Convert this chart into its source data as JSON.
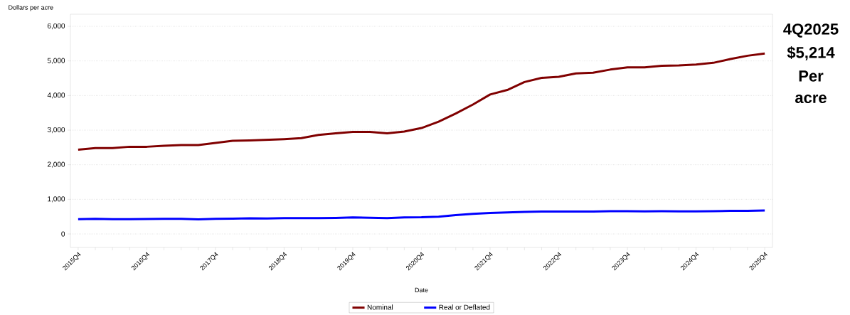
{
  "chart_data": {
    "type": "line",
    "ylabel": "Dollars per acre",
    "xlabel": "Date",
    "categories": [
      "2015Q4",
      null,
      null,
      null,
      "2016Q4",
      null,
      null,
      null,
      "2017Q4",
      null,
      null,
      null,
      "2018Q4",
      null,
      null,
      null,
      "2019Q4",
      null,
      null,
      null,
      "2020Q4",
      null,
      null,
      null,
      "2021Q4",
      null,
      null,
      null,
      "2022Q4",
      null,
      null,
      null,
      "2023Q4",
      null,
      null,
      null,
      "2024Q4",
      null,
      null,
      null,
      "2025Q4"
    ],
    "series": [
      {
        "name": "Nominal",
        "color": "#800000",
        "values": [
          2435,
          2480,
          2480,
          2520,
          2520,
          2550,
          2570,
          2570,
          2630,
          2690,
          2700,
          2720,
          2740,
          2770,
          2860,
          2910,
          2950,
          2950,
          2910,
          2960,
          3060,
          3245,
          3480,
          3740,
          4030,
          4160,
          4390,
          4510,
          4540,
          4640,
          4660,
          4750,
          4815,
          4815,
          4860,
          4870,
          4895,
          4945,
          5055,
          5150,
          5214
        ]
      },
      {
        "name": "Real or Deflated",
        "color": "#0000ff",
        "values": [
          425,
          435,
          425,
          425,
          430,
          435,
          435,
          420,
          435,
          440,
          450,
          445,
          455,
          455,
          455,
          465,
          480,
          470,
          456,
          480,
          483,
          500,
          545,
          580,
          605,
          620,
          635,
          645,
          645,
          645,
          645,
          660,
          660,
          655,
          660,
          655,
          652,
          660,
          668,
          670,
          676
        ]
      }
    ],
    "ylim": [
      -390,
      6350
    ],
    "yticks": [
      {
        "value": 0,
        "label": "0"
      },
      {
        "value": 1000,
        "label": "1,000"
      },
      {
        "value": 2000,
        "label": "2,000"
      },
      {
        "value": 3000,
        "label": "3,000"
      },
      {
        "value": 4000,
        "label": "4,000"
      },
      {
        "value": 5000,
        "label": "5,000"
      },
      {
        "value": 6000,
        "label": "6,000"
      }
    ],
    "grid": "y",
    "legend": "bottom",
    "marker": "none",
    "line_style": "solid",
    "annotations": [
      "4Q2025",
      "$5,214",
      "Per",
      "acre"
    ]
  }
}
